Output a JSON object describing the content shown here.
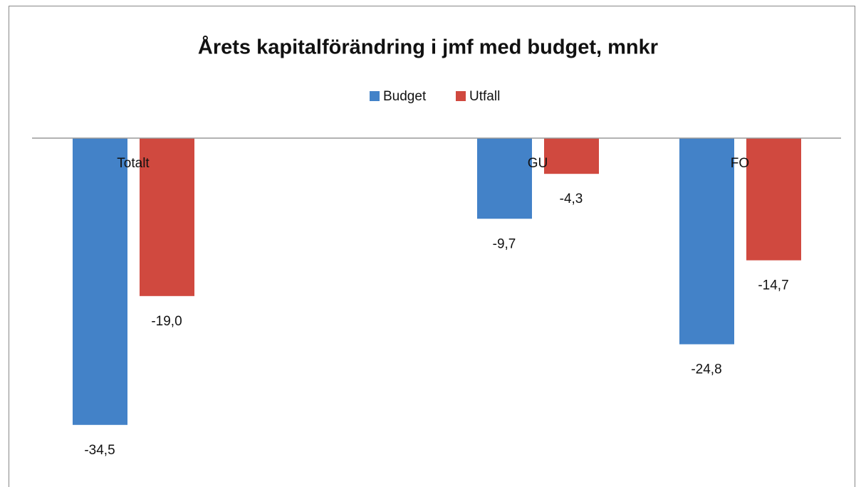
{
  "chart_data": {
    "type": "bar",
    "title": "Årets kapitalförändring i jmf med budget, mnkr",
    "categories": [
      "Totalt",
      null,
      "GU",
      "FO"
    ],
    "series": [
      {
        "name": "Budget",
        "color": "#4382c8",
        "values": [
          -34.5,
          null,
          -9.7,
          -24.8
        ],
        "value_labels": [
          "-34,5",
          null,
          "-9,7",
          "-24,8"
        ]
      },
      {
        "name": "Utfall",
        "color": "#d0493f",
        "values": [
          -19.0,
          null,
          -4.3,
          -14.7
        ],
        "value_labels": [
          "-19,0",
          null,
          "-4,3",
          "-14,7"
        ]
      }
    ],
    "ylim": [
      -40,
      0
    ]
  }
}
